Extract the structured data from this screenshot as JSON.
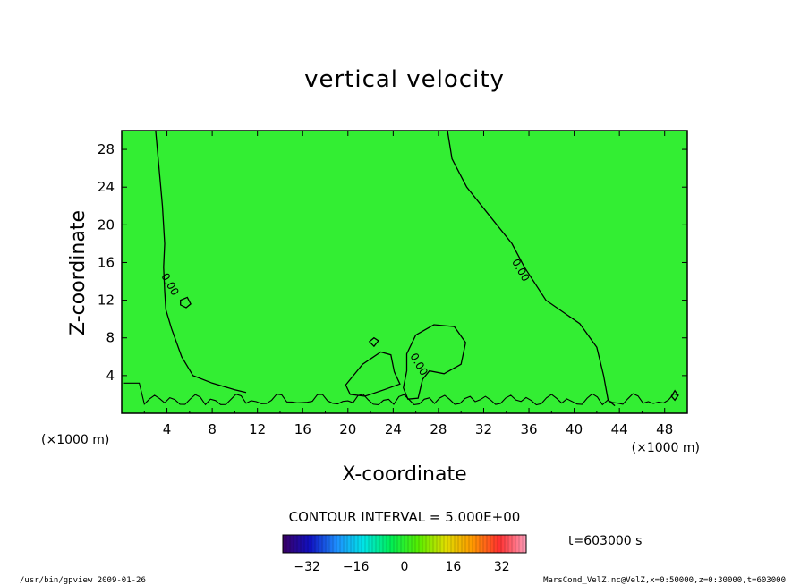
{
  "chart_data": {
    "type": "heatmap",
    "title": "vertical velocity",
    "xlabel": "X-coordinate",
    "ylabel": "Z-coordinate",
    "x_unit": "(×1000 m)",
    "y_unit": "(×1000 m)",
    "xlim": [
      0,
      50
    ],
    "ylim": [
      0,
      30
    ],
    "x_ticks": [
      4,
      8,
      12,
      16,
      20,
      24,
      28,
      32,
      36,
      40,
      44,
      48
    ],
    "y_ticks": [
      4,
      8,
      12,
      16,
      20,
      24,
      28
    ],
    "contour_interval": "CONTOUR INTERVAL = 5.000E+00",
    "contour_labels": [
      {
        "text": "0.00",
        "x": 4.0,
        "y": 13.5
      },
      {
        "text": "0.00",
        "x": 35.0,
        "y": 15.0
      },
      {
        "text": "0.00",
        "x": 26.0,
        "y": 5.0
      }
    ],
    "colorbar": {
      "ticks": [
        -32,
        -16,
        0,
        16,
        32
      ],
      "range": [
        -40,
        40
      ],
      "colors": [
        "#3b0066",
        "#1010c0",
        "#1e90ff",
        "#00e5e5",
        "#00ee55",
        "#55ee00",
        "#dede00",
        "#ff9900",
        "#ff3030",
        "#ff9dba"
      ]
    },
    "field_color": "#33ee33"
  },
  "time_label": "t=603000 s",
  "footer": {
    "left": "/usr/bin/gpview  2009-01-26",
    "right": "MarsCond_VelZ.nc@VelZ,x=0:50000,z=0:30000,t=603000"
  }
}
